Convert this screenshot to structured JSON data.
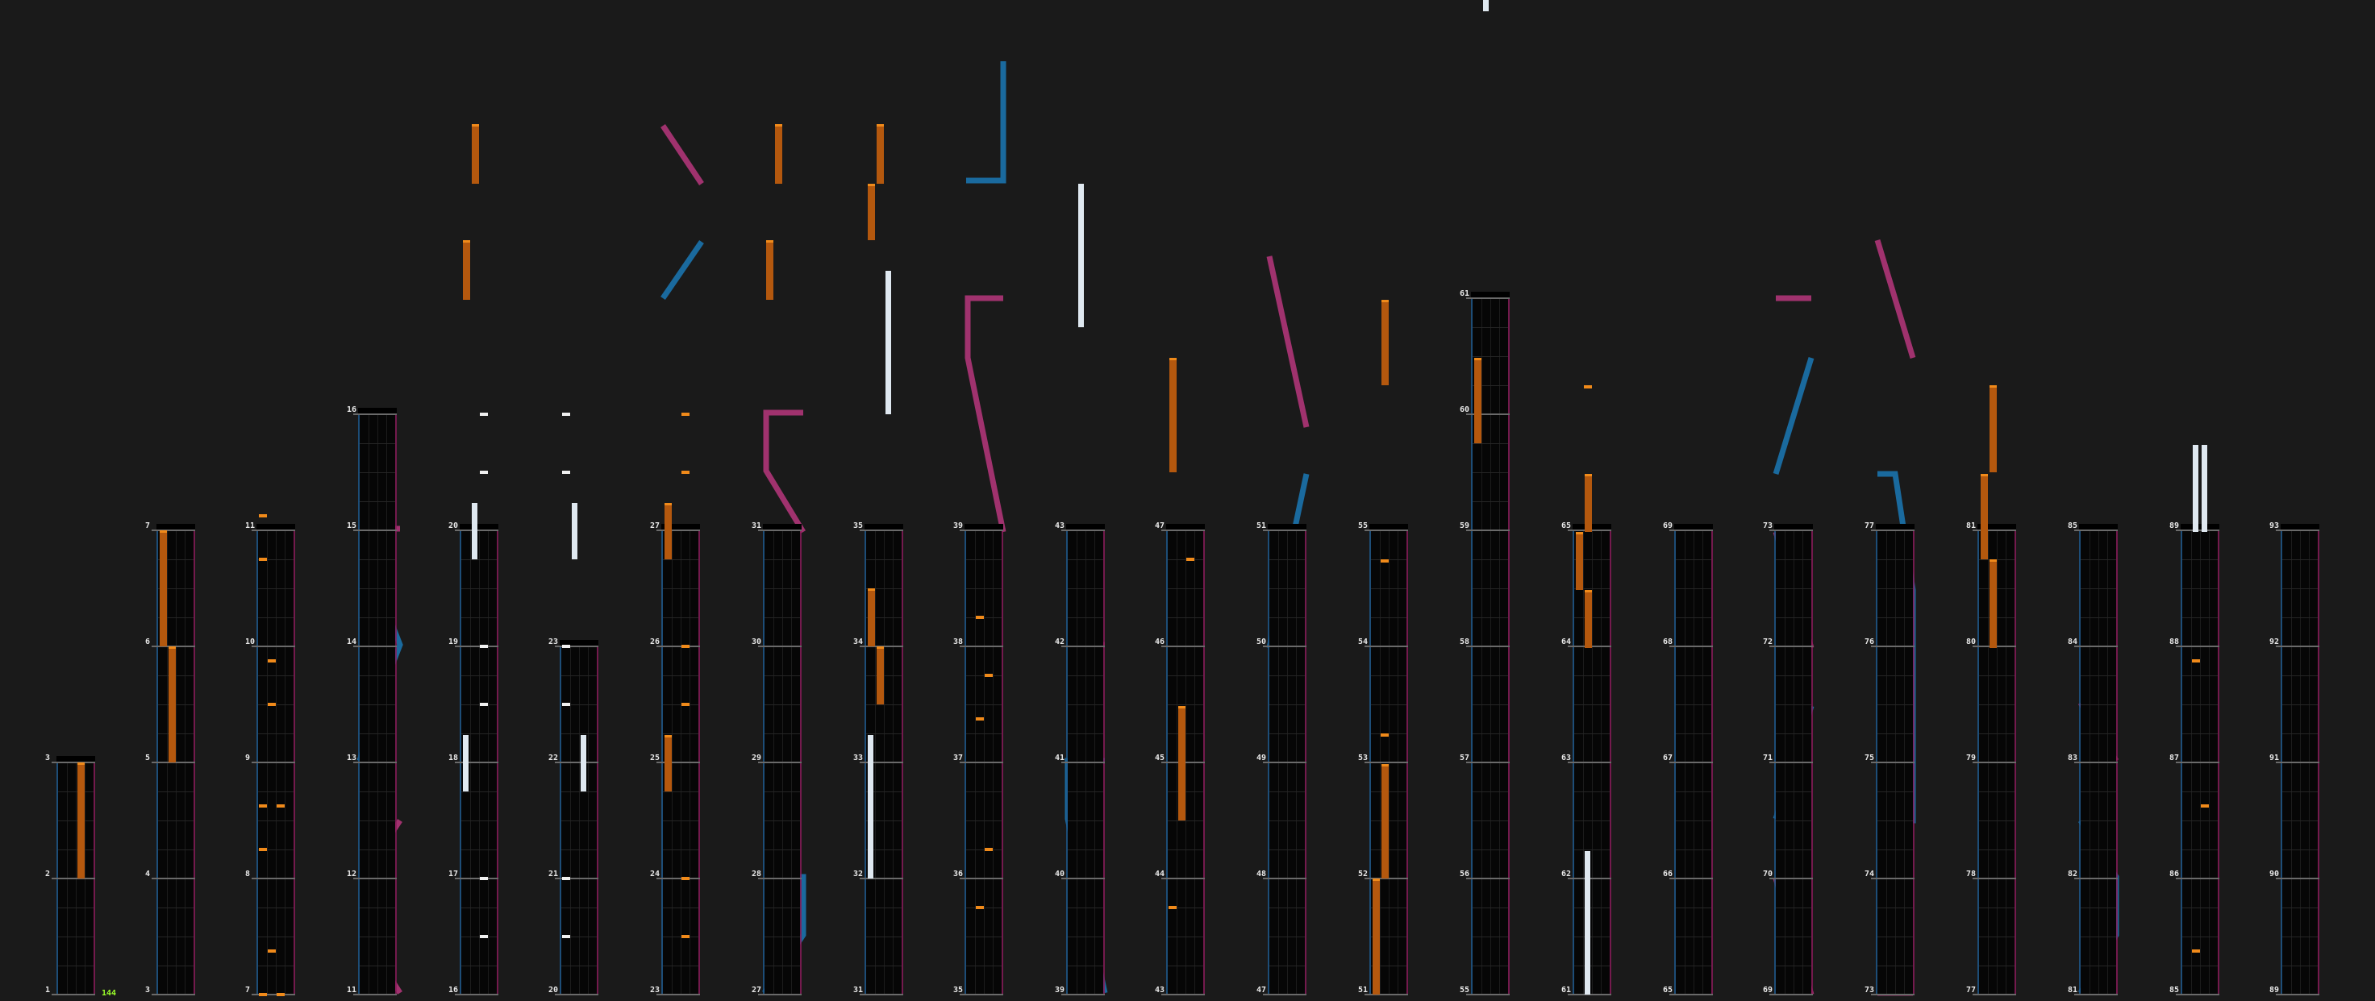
{
  "combo_count": "144",
  "colors": {
    "tap": "#f08a1a",
    "hold": "#b4580e",
    "white_note": "#f0f0f0",
    "slide_left": "#1a6a9e",
    "slide_right": "#a0326e",
    "background": "#1a1a1a"
  },
  "columns": [
    {
      "measures": [
        "3",
        "2",
        "1"
      ],
      "notes": [
        {
          "t": "hold",
          "lane": 2,
          "from": 0,
          "to": 1
        }
      ]
    },
    {
      "measures": [
        "7",
        "6",
        "5",
        "4",
        "3"
      ],
      "notes": [
        {
          "t": "hold",
          "lane": 0,
          "from": 0,
          "to": 1
        },
        {
          "t": "hold",
          "lane": 1,
          "from": 1,
          "to": 2
        }
      ]
    },
    {
      "measures": [
        "11",
        "10",
        "9",
        "8",
        "7"
      ],
      "notes": []
    },
    {
      "measures": [
        "16",
        "15",
        "14",
        "13",
        "12",
        "11"
      ],
      "notes": []
    },
    {
      "measures": [
        "20",
        "19",
        "18",
        "17",
        "16"
      ],
      "notes": []
    },
    {
      "measures": [
        "23",
        "22",
        "21",
        "20"
      ],
      "notes": []
    },
    {
      "measures": [
        "27",
        "26",
        "25",
        "24",
        "23"
      ],
      "notes": []
    },
    {
      "measures": [
        "31",
        "30",
        "29",
        "28",
        "27"
      ],
      "notes": []
    },
    {
      "measures": [
        "35",
        "34",
        "33",
        "32",
        "31"
      ],
      "notes": []
    },
    {
      "measures": [
        "39",
        "38",
        "37",
        "36",
        "35"
      ],
      "notes": []
    },
    {
      "measures": [
        "43",
        "42",
        "41",
        "40",
        "39"
      ],
      "notes": []
    },
    {
      "measures": [
        "47",
        "46",
        "45",
        "44",
        "43"
      ],
      "notes": []
    },
    {
      "measures": [
        "51",
        "50",
        "49",
        "48",
        "47"
      ],
      "notes": []
    },
    {
      "measures": [
        "55",
        "54",
        "53",
        "52",
        "51"
      ],
      "notes": []
    },
    {
      "measures": [
        "61",
        "60",
        "59",
        "58",
        "57",
        "56",
        "55"
      ],
      "notes": []
    },
    {
      "measures": [
        "65",
        "64",
        "63",
        "62",
        "61"
      ],
      "notes": []
    },
    {
      "measures": [
        "69",
        "68",
        "67",
        "66",
        "65"
      ],
      "notes": []
    },
    {
      "measures": [
        "73",
        "72",
        "71",
        "70",
        "69"
      ],
      "notes": []
    },
    {
      "measures": [
        "77",
        "76",
        "75",
        "74",
        "73"
      ],
      "notes": []
    },
    {
      "measures": [
        "81",
        "80",
        "79",
        "78",
        "77"
      ],
      "notes": []
    },
    {
      "measures": [
        "85",
        "84",
        "83",
        "82",
        "81"
      ],
      "notes": []
    },
    {
      "measures": [
        "89",
        "88",
        "87",
        "86",
        "85"
      ],
      "notes": []
    },
    {
      "measures": [
        "93",
        "92",
        "91",
        "90",
        "89"
      ],
      "notes": []
    }
  ]
}
